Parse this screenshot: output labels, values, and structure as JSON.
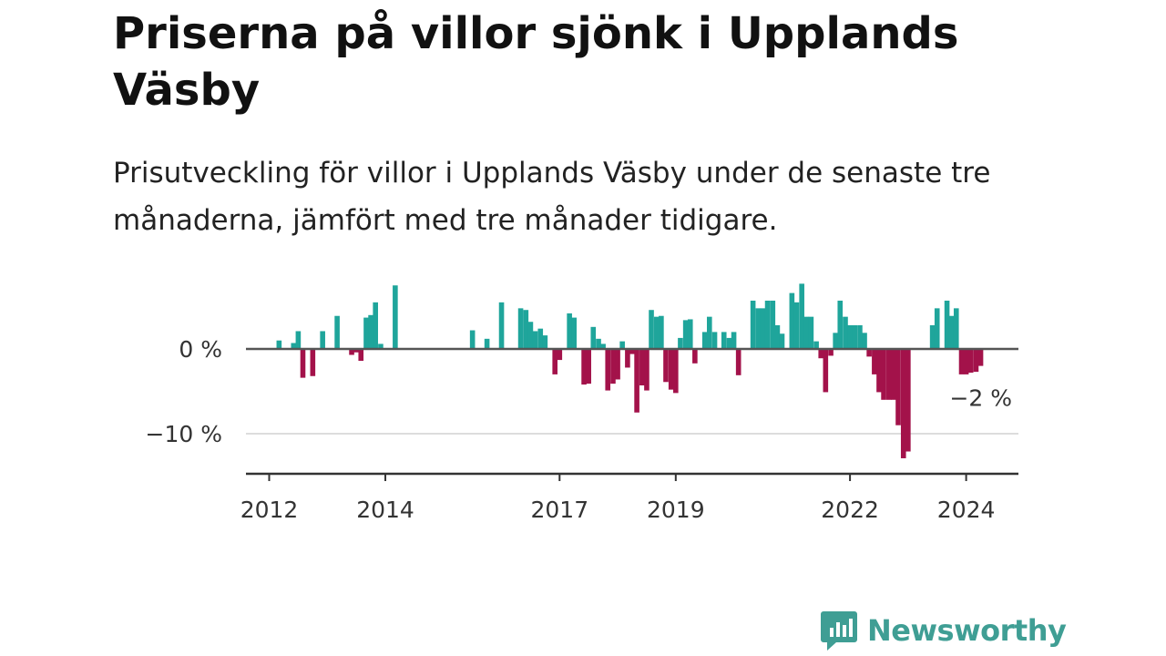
{
  "title": "Priserna på villor sjönk i Upplands Väsby",
  "subtitle": "Prisutveckling för villor i Upplands Väsby under de senaste tre månaderna, jämfört med tre månader tidigare.",
  "brand": {
    "name": "Newsworthy",
    "color": "#3f9e94"
  },
  "chart_data": {
    "type": "bar",
    "unit": "%",
    "colors": {
      "positive": "#1fa59b",
      "negative": "#a3124a",
      "zero_line": "#555555",
      "grid": "#dddddd",
      "axis": "#333333"
    },
    "x_range": [
      2011.6,
      2024.9
    ],
    "ylim": [
      -15,
      8
    ],
    "y_ticks": [
      {
        "value": 0,
        "label": "0 %"
      },
      {
        "value": -10,
        "label": "−10 %"
      }
    ],
    "x_ticks": [
      {
        "value": 2012.0,
        "label": "2012"
      },
      {
        "value": 2014.0,
        "label": "2014"
      },
      {
        "value": 2017.0,
        "label": "2017"
      },
      {
        "value": 2019.0,
        "label": "2019"
      },
      {
        "value": 2022.0,
        "label": "2022"
      },
      {
        "value": 2024.0,
        "label": "2024"
      }
    ],
    "last_value_label": {
      "x": 2024.08,
      "value": -2,
      "label": "−2 %"
    },
    "points": [
      {
        "x": 2012.17,
        "value": 1.0
      },
      {
        "x": 2012.42,
        "value": 0.7
      },
      {
        "x": 2012.5,
        "value": 2.1
      },
      {
        "x": 2012.58,
        "value": -3.4
      },
      {
        "x": 2012.75,
        "value": -3.2
      },
      {
        "x": 2012.92,
        "value": 2.1
      },
      {
        "x": 2013.17,
        "value": 3.9
      },
      {
        "x": 2013.42,
        "value": -0.7
      },
      {
        "x": 2013.5,
        "value": -0.4
      },
      {
        "x": 2013.58,
        "value": -1.4
      },
      {
        "x": 2013.67,
        "value": 3.7
      },
      {
        "x": 2013.75,
        "value": 4.0
      },
      {
        "x": 2013.83,
        "value": 5.5
      },
      {
        "x": 2013.92,
        "value": 0.6
      },
      {
        "x": 2014.17,
        "value": 7.5
      },
      {
        "x": 2015.5,
        "value": 2.2
      },
      {
        "x": 2015.75,
        "value": 1.2
      },
      {
        "x": 2016.0,
        "value": 5.5
      },
      {
        "x": 2016.33,
        "value": 4.8
      },
      {
        "x": 2016.42,
        "value": 4.6
      },
      {
        "x": 2016.5,
        "value": 3.2
      },
      {
        "x": 2016.58,
        "value": 2.1
      },
      {
        "x": 2016.67,
        "value": 2.4
      },
      {
        "x": 2016.75,
        "value": 1.6
      },
      {
        "x": 2016.92,
        "value": -3.0
      },
      {
        "x": 2017.0,
        "value": -1.3
      },
      {
        "x": 2017.17,
        "value": 4.2
      },
      {
        "x": 2017.25,
        "value": 3.7
      },
      {
        "x": 2017.42,
        "value": -4.2
      },
      {
        "x": 2017.5,
        "value": -4.1
      },
      {
        "x": 2017.58,
        "value": 2.6
      },
      {
        "x": 2017.67,
        "value": 1.2
      },
      {
        "x": 2017.75,
        "value": 0.6
      },
      {
        "x": 2017.83,
        "value": -4.9
      },
      {
        "x": 2017.92,
        "value": -4.1
      },
      {
        "x": 2018.0,
        "value": -3.6
      },
      {
        "x": 2018.08,
        "value": 0.9
      },
      {
        "x": 2018.17,
        "value": -2.2
      },
      {
        "x": 2018.25,
        "value": -0.6
      },
      {
        "x": 2018.33,
        "value": -7.5
      },
      {
        "x": 2018.42,
        "value": -4.3
      },
      {
        "x": 2018.5,
        "value": -4.9
      },
      {
        "x": 2018.58,
        "value": 4.6
      },
      {
        "x": 2018.67,
        "value": 3.8
      },
      {
        "x": 2018.75,
        "value": 3.9
      },
      {
        "x": 2018.83,
        "value": -3.9
      },
      {
        "x": 2018.92,
        "value": -4.8
      },
      {
        "x": 2019.0,
        "value": -5.2
      },
      {
        "x": 2019.08,
        "value": 1.3
      },
      {
        "x": 2019.17,
        "value": 3.4
      },
      {
        "x": 2019.25,
        "value": 3.5
      },
      {
        "x": 2019.33,
        "value": -1.7
      },
      {
        "x": 2019.5,
        "value": 2.0
      },
      {
        "x": 2019.58,
        "value": 3.8
      },
      {
        "x": 2019.67,
        "value": 2.0
      },
      {
        "x": 2019.83,
        "value": 2.0
      },
      {
        "x": 2019.92,
        "value": 1.3
      },
      {
        "x": 2020.0,
        "value": 2.0
      },
      {
        "x": 2020.08,
        "value": -3.1
      },
      {
        "x": 2020.33,
        "value": 5.7
      },
      {
        "x": 2020.42,
        "value": 4.8
      },
      {
        "x": 2020.5,
        "value": 4.8
      },
      {
        "x": 2020.58,
        "value": 5.7
      },
      {
        "x": 2020.67,
        "value": 5.7
      },
      {
        "x": 2020.75,
        "value": 2.8
      },
      {
        "x": 2020.83,
        "value": 1.8
      },
      {
        "x": 2021.0,
        "value": 6.6
      },
      {
        "x": 2021.08,
        "value": 5.5
      },
      {
        "x": 2021.17,
        "value": 7.7
      },
      {
        "x": 2021.25,
        "value": 3.8
      },
      {
        "x": 2021.33,
        "value": 3.8
      },
      {
        "x": 2021.42,
        "value": 0.9
      },
      {
        "x": 2021.5,
        "value": -1.1
      },
      {
        "x": 2021.58,
        "value": -5.1
      },
      {
        "x": 2021.67,
        "value": -0.8
      },
      {
        "x": 2021.75,
        "value": 1.9
      },
      {
        "x": 2021.83,
        "value": 5.7
      },
      {
        "x": 2021.92,
        "value": 3.8
      },
      {
        "x": 2022.0,
        "value": 2.8
      },
      {
        "x": 2022.08,
        "value": 2.8
      },
      {
        "x": 2022.17,
        "value": 2.8
      },
      {
        "x": 2022.25,
        "value": 1.9
      },
      {
        "x": 2022.33,
        "value": -0.9
      },
      {
        "x": 2022.42,
        "value": -3.0
      },
      {
        "x": 2022.5,
        "value": -5.1
      },
      {
        "x": 2022.58,
        "value": -6.0
      },
      {
        "x": 2022.67,
        "value": -6.0
      },
      {
        "x": 2022.75,
        "value": -6.0
      },
      {
        "x": 2022.83,
        "value": -9.0
      },
      {
        "x": 2022.92,
        "value": -12.9
      },
      {
        "x": 2023.0,
        "value": -12.1
      },
      {
        "x": 2023.42,
        "value": 2.8
      },
      {
        "x": 2023.5,
        "value": 4.8
      },
      {
        "x": 2023.67,
        "value": 5.7
      },
      {
        "x": 2023.75,
        "value": 3.9
      },
      {
        "x": 2023.83,
        "value": 4.8
      },
      {
        "x": 2023.92,
        "value": -3.0
      },
      {
        "x": 2024.0,
        "value": -3.0
      },
      {
        "x": 2024.08,
        "value": -2.8
      },
      {
        "x": 2024.17,
        "value": -2.7
      },
      {
        "x": 2024.25,
        "value": -2.0
      }
    ]
  }
}
